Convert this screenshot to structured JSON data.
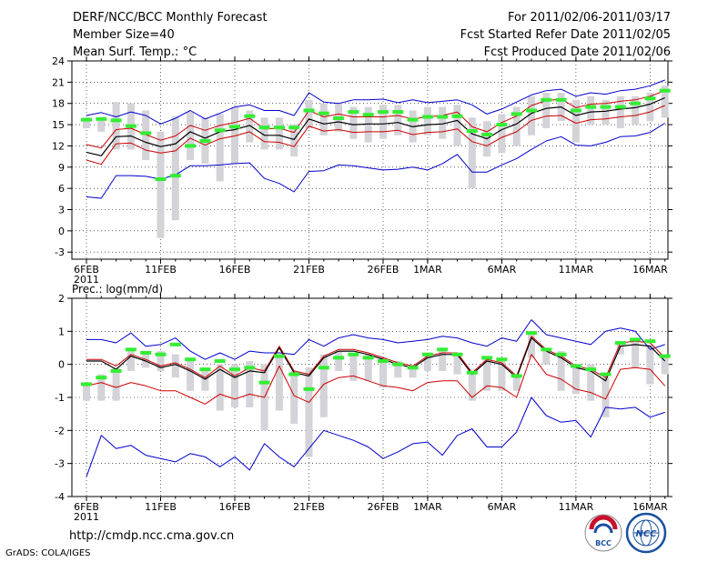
{
  "header": {
    "title": "DERF/NCC/BCC Monthly Forecast",
    "member_size": "Member Size=40",
    "variable": "Mean Surf. Temp.: °C",
    "period": "For 2011/02/06-2011/03/17",
    "started": "Fcst Started Refer Date 2011/02/05",
    "produced": "Fcst Produced Date 2011/02/06"
  },
  "footer": {
    "url": "http://cmdp.ncc.cma.gov.cn",
    "grads": "GrADS: COLA/IGES",
    "logo_bcc": "BCC",
    "logo_ncc": "NCC"
  },
  "colors": {
    "upper": "#0000cc",
    "lower": "#0000cc",
    "mean": "#000000",
    "spread": "#cc0000",
    "box": "#d3d3d8",
    "marker": "#33ee33"
  },
  "chart_data": [
    {
      "type": "line",
      "panel": "temperature",
      "title": "",
      "ylabel": "",
      "ylim": [
        -4,
        24
      ],
      "yticks": [
        -3,
        0,
        3,
        6,
        9,
        12,
        15,
        18,
        21,
        24
      ],
      "xticks": [
        {
          "day": 0,
          "label": "6FEB",
          "sub": "2011"
        },
        {
          "day": 5,
          "label": "11FEB"
        },
        {
          "day": 10,
          "label": "16FEB"
        },
        {
          "day": 15,
          "label": "21FEB"
        },
        {
          "day": 20,
          "label": "26FEB"
        },
        {
          "day": 23,
          "label": "1MAR"
        },
        {
          "day": 28,
          "label": "6MAR"
        },
        {
          "day": 33,
          "label": "11MAR"
        },
        {
          "day": 38,
          "label": "16MAR"
        }
      ],
      "series": [
        {
          "name": "max",
          "role": "upper",
          "values": [
            16.3,
            16.7,
            16.1,
            16.8,
            16.3,
            15.1,
            15.9,
            17.0,
            15.8,
            16.6,
            17.5,
            17.8,
            17.0,
            17.0,
            16.3,
            19.5,
            18.2,
            18.0,
            18.5,
            18.5,
            18.6,
            18.1,
            18.5,
            18.1,
            18.3,
            18.5,
            17.8,
            16.5,
            17.2,
            18.2,
            19.2,
            19.8,
            20.0,
            19.0,
            19.5,
            19.3,
            19.8,
            20.0,
            20.5,
            21.3
          ]
        },
        {
          "name": "min",
          "role": "lower",
          "values": [
            4.8,
            4.6,
            7.8,
            7.8,
            7.7,
            7.3,
            7.9,
            9.2,
            9.2,
            9.3,
            9.5,
            9.6,
            7.4,
            6.7,
            5.5,
            8.4,
            8.5,
            9.3,
            9.2,
            8.9,
            8.6,
            8.7,
            9.0,
            8.6,
            9.5,
            10.8,
            8.3,
            8.3,
            9.3,
            10.2,
            11.5,
            12.7,
            13.3,
            12.1,
            12.0,
            12.5,
            13.3,
            13.4,
            13.9,
            15.2
          ]
        },
        {
          "name": "ensemble mean",
          "role": "mean",
          "values": [
            11.1,
            10.6,
            13.3,
            13.4,
            12.5,
            11.9,
            12.3,
            14.0,
            13.1,
            14.0,
            14.3,
            14.9,
            13.5,
            13.5,
            12.9,
            15.8,
            15.1,
            15.4,
            15.0,
            15.1,
            15.1,
            15.3,
            14.7,
            15.0,
            15.1,
            15.6,
            13.7,
            13.0,
            14.3,
            15.1,
            16.6,
            17.3,
            17.5,
            16.3,
            16.8,
            16.9,
            17.2,
            17.4,
            17.9,
            18.8
          ]
        },
        {
          "name": "mean + spread",
          "role": "spread",
          "values": [
            12.2,
            11.7,
            14.3,
            14.5,
            13.6,
            12.8,
            13.4,
            14.9,
            14.2,
            14.9,
            15.3,
            15.9,
            14.4,
            14.5,
            13.9,
            17.0,
            16.1,
            16.5,
            16.1,
            16.1,
            16.1,
            16.3,
            15.8,
            16.1,
            16.3,
            16.8,
            14.7,
            14.0,
            15.3,
            16.2,
            17.7,
            18.4,
            18.6,
            17.4,
            17.9,
            18.0,
            18.3,
            18.5,
            19.0,
            19.8
          ]
        },
        {
          "name": "mean - spread",
          "role": "spread",
          "values": [
            10.0,
            9.4,
            12.3,
            12.4,
            11.4,
            11.0,
            11.3,
            13.1,
            12.1,
            13.0,
            13.4,
            14.0,
            12.6,
            12.5,
            11.9,
            14.8,
            14.1,
            14.3,
            13.9,
            14.0,
            14.0,
            14.2,
            13.6,
            13.9,
            14.0,
            14.4,
            12.6,
            12.0,
            13.2,
            14.0,
            15.6,
            16.2,
            16.3,
            15.2,
            15.7,
            15.8,
            16.1,
            16.3,
            16.8,
            17.7
          ]
        },
        {
          "name": "box top",
          "role": "box_top",
          "values": [
            16.0,
            16.0,
            18.2,
            18.0,
            17.0,
            14.0,
            16.2,
            16.8,
            16.0,
            16.5,
            17.5,
            17.0,
            16.0,
            16.0,
            15.0,
            18.5,
            18.0,
            18.0,
            17.5,
            17.5,
            17.8,
            17.8,
            17.0,
            17.5,
            17.5,
            17.8,
            16.0,
            15.5,
            16.5,
            17.5,
            19.0,
            19.5,
            19.5,
            18.5,
            19.0,
            18.5,
            19.0,
            19.0,
            19.5,
            20.5
          ]
        },
        {
          "name": "box bottom",
          "role": "box_bottom",
          "values": [
            14.5,
            14.0,
            11.5,
            11.5,
            10.0,
            -1.0,
            1.5,
            10.0,
            9.5,
            7.0,
            9.5,
            12.5,
            11.5,
            11.5,
            10.5,
            14.5,
            13.5,
            14.0,
            13.0,
            12.5,
            13.0,
            13.5,
            12.5,
            13.5,
            13.0,
            12.0,
            6.0,
            10.5,
            11.0,
            12.0,
            13.5,
            14.5,
            15.5,
            12.5,
            15.0,
            15.0,
            14.5,
            15.0,
            15.5,
            16.0
          ]
        },
        {
          "name": "observed / control",
          "role": "marker",
          "values": [
            15.7,
            15.8,
            15.6,
            14.8,
            13.8,
            7.3,
            7.8,
            12.0,
            12.7,
            14.2,
            14.7,
            16.2,
            14.6,
            14.6,
            14.6,
            17.0,
            16.6,
            15.9,
            16.8,
            16.4,
            16.8,
            16.8,
            15.7,
            16.1,
            16.1,
            16.2,
            14.1,
            13.6,
            15.0,
            16.5,
            17.0,
            18.5,
            18.5,
            17.0,
            17.5,
            17.5,
            17.5,
            18.0,
            18.7,
            19.8
          ]
        }
      ]
    },
    {
      "type": "line",
      "panel": "precipitation",
      "title": "Prec.: log(mm/d)",
      "ylabel": "",
      "ylim": [
        -4,
        2
      ],
      "yticks": [
        -4,
        -3,
        -2,
        -1,
        0,
        1,
        2
      ],
      "xticks": [
        {
          "day": 0,
          "label": "6FEB",
          "sub": "2011"
        },
        {
          "day": 5,
          "label": "11FEB"
        },
        {
          "day": 10,
          "label": "16FEB"
        },
        {
          "day": 15,
          "label": "21FEB"
        },
        {
          "day": 20,
          "label": "26FEB"
        },
        {
          "day": 23,
          "label": "1MAR"
        },
        {
          "day": 28,
          "label": "6MAR"
        },
        {
          "day": 33,
          "label": "11MAR"
        },
        {
          "day": 38,
          "label": "16MAR"
        }
      ],
      "series": [
        {
          "name": "max",
          "role": "upper",
          "values": [
            0.75,
            0.75,
            0.65,
            0.95,
            0.55,
            0.6,
            0.8,
            0.4,
            0.15,
            0.35,
            0.15,
            0.4,
            0.35,
            0.35,
            0.3,
            0.75,
            0.55,
            0.8,
            0.9,
            0.8,
            0.75,
            0.65,
            0.7,
            0.75,
            0.85,
            0.8,
            0.65,
            0.55,
            0.8,
            0.7,
            1.35,
            0.9,
            0.8,
            0.7,
            0.6,
            1.0,
            1.1,
            1.0,
            0.45,
            0.6
          ]
        },
        {
          "name": "min",
          "role": "lower",
          "values": [
            -3.4,
            -2.15,
            -2.55,
            -2.45,
            -2.75,
            -2.85,
            -2.95,
            -2.7,
            -2.8,
            -3.1,
            -2.8,
            -3.2,
            -2.4,
            -2.8,
            -3.1,
            -2.55,
            -2.0,
            -2.15,
            -2.3,
            -2.5,
            -2.85,
            -2.65,
            -2.4,
            -2.35,
            -2.75,
            -2.15,
            -1.95,
            -2.5,
            -2.5,
            -2.05,
            -1.0,
            -1.55,
            -1.75,
            -1.7,
            -2.2,
            -1.3,
            -1.35,
            -1.3,
            -1.6,
            -1.45
          ]
        },
        {
          "name": "ensemble mean",
          "role": "mean",
          "values": [
            0.1,
            0.1,
            -0.15,
            0.25,
            0.1,
            -0.1,
            0.0,
            -0.2,
            -0.45,
            -0.15,
            -0.4,
            -0.2,
            -0.25,
            0.5,
            -0.25,
            -0.35,
            0.2,
            0.4,
            0.4,
            0.3,
            0.15,
            0.0,
            -0.1,
            0.2,
            0.3,
            0.3,
            -0.3,
            0.1,
            0.0,
            -0.4,
            0.8,
            0.4,
            0.2,
            -0.1,
            -0.2,
            -0.5,
            0.55,
            0.6,
            0.55,
            0.1
          ]
        },
        {
          "name": "mean + spread",
          "role": "spread",
          "values": [
            0.15,
            0.15,
            -0.05,
            0.3,
            0.15,
            -0.05,
            0.05,
            -0.15,
            -0.4,
            -0.05,
            -0.35,
            -0.1,
            -0.2,
            0.55,
            -0.2,
            -0.3,
            0.25,
            0.45,
            0.45,
            0.35,
            0.2,
            0.05,
            -0.05,
            0.25,
            0.35,
            0.35,
            -0.25,
            0.15,
            0.05,
            -0.35,
            0.85,
            0.45,
            0.25,
            -0.05,
            -0.15,
            -0.4,
            0.65,
            0.7,
            0.65,
            0.2
          ]
        },
        {
          "name": "mean - spread",
          "role": "spread",
          "values": [
            -0.65,
            -0.55,
            -0.7,
            -0.55,
            -0.65,
            -0.8,
            -0.8,
            -1.0,
            -1.2,
            -0.9,
            -1.05,
            -0.9,
            -1.0,
            -0.05,
            -0.95,
            -1.15,
            -0.6,
            -0.4,
            -0.35,
            -0.5,
            -0.65,
            -0.7,
            -0.8,
            -0.55,
            -0.5,
            -0.5,
            -1.0,
            -0.65,
            -0.7,
            -1.0,
            0.3,
            -0.3,
            -0.45,
            -0.75,
            -0.85,
            -1.05,
            -0.15,
            -0.1,
            -0.15,
            -0.65
          ]
        },
        {
          "name": "box top",
          "role": "box_top",
          "values": [
            -0.6,
            -0.3,
            -0.1,
            0.45,
            0.3,
            0.4,
            0.3,
            0.2,
            -0.1,
            0.0,
            0.0,
            0.1,
            0.0,
            0.2,
            -0.2,
            -0.1,
            0.3,
            0.4,
            0.35,
            0.3,
            0.2,
            0.1,
            -0.05,
            0.3,
            0.45,
            0.3,
            -0.3,
            0.2,
            0.2,
            -0.3,
            0.9,
            0.5,
            0.4,
            0.0,
            0.0,
            -0.4,
            0.7,
            0.7,
            0.6,
            0.3
          ]
        },
        {
          "name": "box bottom",
          "role": "box_bottom",
          "values": [
            -1.1,
            -1.1,
            -1.1,
            -0.2,
            -0.1,
            -0.2,
            -0.4,
            -0.8,
            -0.8,
            -1.4,
            -1.3,
            -1.3,
            -2.0,
            -1.4,
            -1.8,
            -2.8,
            -1.6,
            -0.2,
            -0.5,
            -0.5,
            -0.7,
            -0.4,
            -0.4,
            -0.2,
            -0.2,
            -0.3,
            -1.1,
            -0.8,
            -0.8,
            -0.8,
            0.2,
            0.0,
            -0.8,
            -0.9,
            -1.1,
            -1.6,
            0.3,
            -0.1,
            -0.6,
            -0.3
          ]
        },
        {
          "name": "observed / control",
          "role": "marker",
          "values": [
            -0.6,
            -0.4,
            -0.2,
            0.45,
            0.35,
            0.3,
            0.6,
            0.15,
            -0.15,
            0.1,
            -0.15,
            -0.1,
            -0.55,
            0.25,
            -0.3,
            -0.75,
            -0.1,
            0.2,
            0.3,
            0.2,
            0.1,
            0.0,
            -0.1,
            0.3,
            0.45,
            0.3,
            -0.25,
            0.2,
            0.15,
            -0.35,
            0.95,
            0.45,
            0.3,
            -0.05,
            -0.15,
            -0.3,
            0.65,
            0.75,
            0.7,
            0.25
          ]
        }
      ]
    }
  ]
}
